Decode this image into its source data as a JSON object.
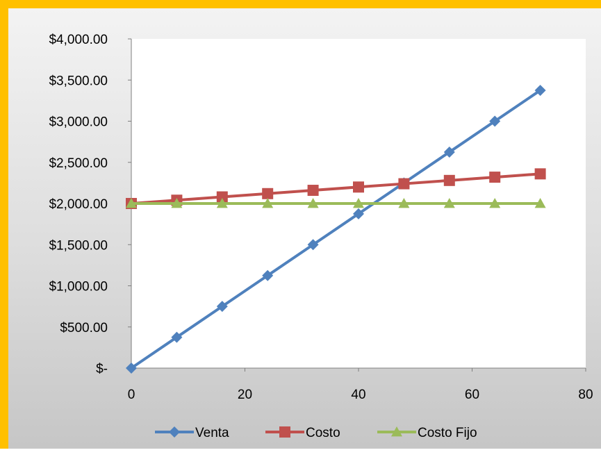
{
  "chart_data": {
    "type": "line",
    "title": "",
    "xlabel": "",
    "ylabel": "",
    "xlim": [
      0,
      80
    ],
    "ylim": [
      0,
      4000
    ],
    "x_ticks": [
      0,
      20,
      40,
      60,
      80
    ],
    "y_ticks": [
      0,
      500,
      1000,
      1500,
      2000,
      2500,
      3000,
      3500,
      4000
    ],
    "x_tick_labels": [
      "0",
      "20",
      "40",
      "60",
      "80"
    ],
    "y_tick_labels": [
      "$-",
      "$500.00",
      "$1,000.00",
      "$1,500.00",
      "$2,000.00",
      "$2,500.00",
      "$3,000.00",
      "$3,500.00",
      "$4,000.00"
    ],
    "grid": false,
    "legend_position": "bottom",
    "x": [
      0,
      8,
      16,
      24,
      32,
      40,
      48,
      56,
      64,
      72
    ],
    "series": [
      {
        "name": "Venta",
        "color": "#4F81BD",
        "marker": "diamond",
        "values": [
          0,
          375,
          750,
          1125,
          1500,
          1875,
          2250,
          2625,
          3000,
          3375
        ]
      },
      {
        "name": "Costo",
        "color": "#C0504D",
        "marker": "square",
        "values": [
          2000,
          2040,
          2080,
          2120,
          2160,
          2200,
          2240,
          2280,
          2320,
          2360
        ]
      },
      {
        "name": "Costo Fijo",
        "color": "#9BBB59",
        "marker": "triangle",
        "values": [
          2000,
          2000,
          2000,
          2000,
          2000,
          2000,
          2000,
          2000,
          2000,
          2000
        ]
      }
    ]
  },
  "colors": {
    "frame_border": "#FFC000",
    "plot_background": "#FFFFFF",
    "axis": "#7F7F7F"
  }
}
